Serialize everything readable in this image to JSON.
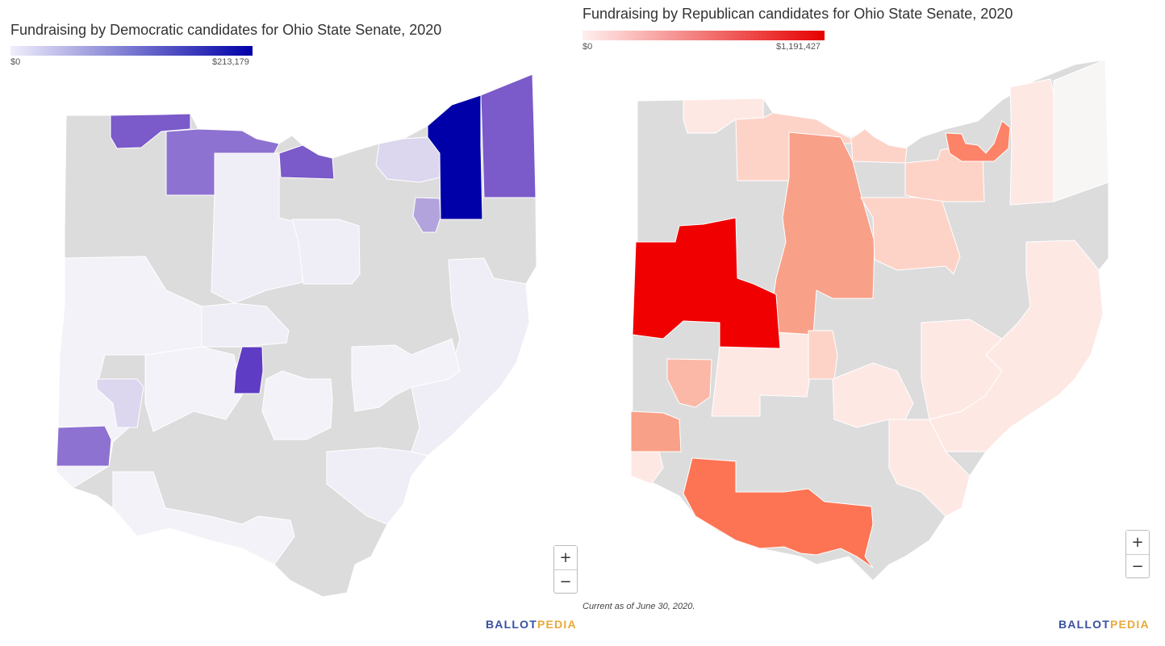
{
  "left_map": {
    "title": "Fundraising by Democratic candidates for Ohio State Senate, 2020",
    "legend": {
      "min_label": "$0",
      "max_label": "$213,179",
      "color_low": "#f0eefa",
      "color_high": "#0000a8"
    },
    "zoom_in": "+",
    "zoom_out": "−",
    "brand_part1": "BALLOT",
    "brand_part2": "PEDIA"
  },
  "right_map": {
    "title": "Fundraising by Republican candidates for Ohio State Senate, 2020",
    "legend": {
      "min_label": "$0",
      "max_label": "$1,191,427",
      "color_low": "#fff0ee",
      "color_high": "#e60000"
    },
    "note": "Current as of June 30, 2020.",
    "zoom_in": "+",
    "zoom_out": "−",
    "brand_part1": "BALLOT",
    "brand_part2": "PEDIA"
  },
  "colors": {
    "no_data": "#dcdcdc",
    "dem_scale": [
      "#f3f2f8",
      "#efedf6",
      "#ddd6ef",
      "#b3a3dd",
      "#8e72d1",
      "#7b5ac9",
      "#5f3cc4",
      "#0000a8"
    ],
    "rep_scale": [
      "#f7f6f5",
      "#fde8e4",
      "#fdd3c8",
      "#fbb8a6",
      "#f9a088",
      "#fc8367",
      "#fd7454",
      "#f00000"
    ],
    "brand_blue": "#3a4fa2",
    "brand_orange": "#e8a93a"
  }
}
